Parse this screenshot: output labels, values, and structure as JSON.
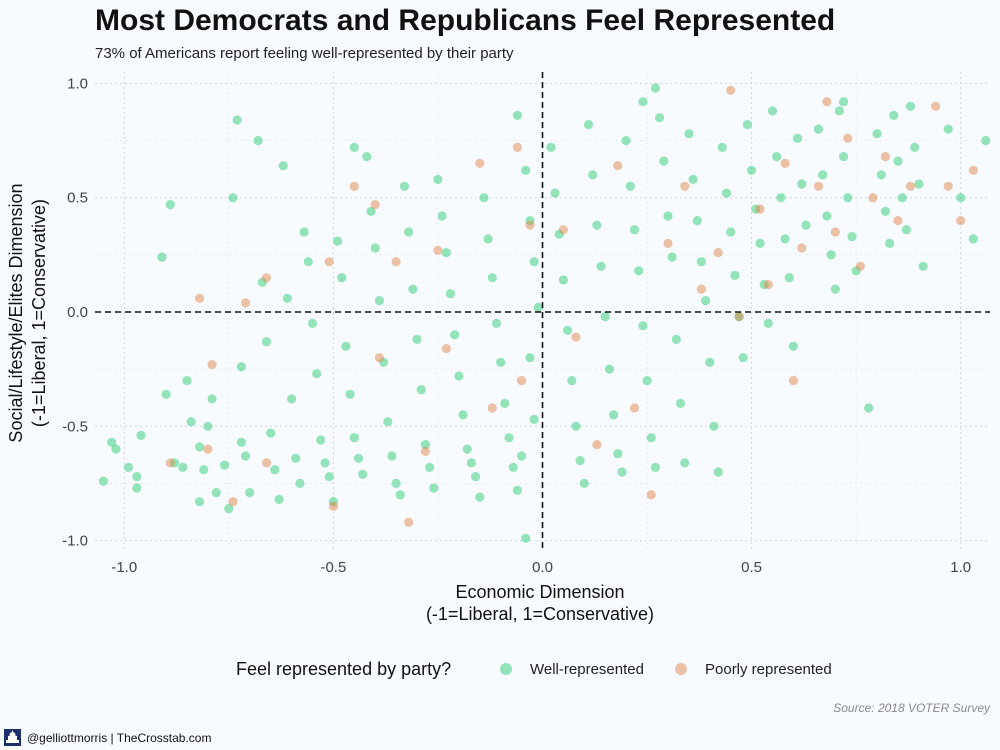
{
  "header": {
    "title": "Most Democrats and Republicans Feel Represented",
    "subtitle": "73% of Americans report feeling well-represented by their party"
  },
  "legend": {
    "title": "Feel represented by party?",
    "items": [
      {
        "label": "Well-represented",
        "color": "#2ecc71"
      },
      {
        "label": "Poorly represented",
        "color": "#e0864a"
      }
    ]
  },
  "caption": "Source: 2018 VOTER Survey",
  "footer": {
    "text": "@gelliottmorris | TheCrosstab.com",
    "icon": "capitol-building-icon"
  },
  "chart_data": {
    "type": "scatter",
    "xlabel": "Economic Dimension",
    "xlabel_line2": "(-1=Liberal, 1=Conservative)",
    "ylabel": "Social/Lifestyle/Elites Dimension",
    "ylabel_line2": "(-1=Liberal, 1=Conservative)",
    "xlim": [
      -1.07,
      1.07
    ],
    "ylim": [
      -1.05,
      1.05
    ],
    "x_ticks": [
      -1.0,
      -0.5,
      0.0,
      0.5,
      1.0
    ],
    "x_tick_labels": [
      "-1.0",
      "-0.5",
      "0.0",
      "0.5",
      "1.0"
    ],
    "y_ticks": [
      -1.0,
      -0.5,
      0.0,
      0.5,
      1.0
    ],
    "y_tick_labels": [
      "-1.0",
      "-0.5",
      "0.0",
      "0.5",
      "1.0"
    ],
    "grid": true,
    "reference_lines": {
      "x": 0,
      "y": 0,
      "style": "dashed"
    },
    "legend_position": "bottom",
    "point_alpha": 0.5,
    "series": [
      {
        "name": "Well-represented",
        "color": "#2ecc71",
        "points": [
          [
            -1.05,
            -0.74
          ],
          [
            -1.03,
            -0.57
          ],
          [
            -1.02,
            -0.6
          ],
          [
            -0.99,
            -0.68
          ],
          [
            -0.97,
            -0.72
          ],
          [
            -0.97,
            -0.77
          ],
          [
            -0.96,
            -0.54
          ],
          [
            -0.91,
            0.24
          ],
          [
            -0.89,
            0.47
          ],
          [
            -0.9,
            -0.36
          ],
          [
            -0.88,
            -0.66
          ],
          [
            -0.86,
            -0.68
          ],
          [
            -0.85,
            -0.3
          ],
          [
            -0.84,
            -0.48
          ],
          [
            -0.82,
            -0.59
          ],
          [
            -0.82,
            -0.83
          ],
          [
            -0.81,
            -0.69
          ],
          [
            -0.8,
            -0.5
          ],
          [
            -0.79,
            -0.38
          ],
          [
            -0.78,
            -0.79
          ],
          [
            -0.76,
            -0.67
          ],
          [
            -0.75,
            -0.86
          ],
          [
            -0.73,
            0.84
          ],
          [
            -0.74,
            0.5
          ],
          [
            -0.72,
            -0.24
          ],
          [
            -0.72,
            -0.57
          ],
          [
            -0.71,
            -0.63
          ],
          [
            -0.7,
            -0.79
          ],
          [
            -0.68,
            0.75
          ],
          [
            -0.67,
            0.13
          ],
          [
            -0.66,
            -0.13
          ],
          [
            -0.65,
            -0.53
          ],
          [
            -0.64,
            -0.69
          ],
          [
            -0.63,
            -0.82
          ],
          [
            -0.62,
            0.64
          ],
          [
            -0.61,
            0.06
          ],
          [
            -0.6,
            -0.38
          ],
          [
            -0.59,
            -0.64
          ],
          [
            -0.58,
            -0.75
          ],
          [
            -0.57,
            0.35
          ],
          [
            -0.56,
            0.22
          ],
          [
            -0.55,
            -0.05
          ],
          [
            -0.54,
            -0.27
          ],
          [
            -0.53,
            -0.56
          ],
          [
            -0.52,
            -0.66
          ],
          [
            -0.51,
            -0.72
          ],
          [
            -0.5,
            -0.83
          ],
          [
            -0.49,
            0.31
          ],
          [
            -0.48,
            0.15
          ],
          [
            -0.47,
            -0.15
          ],
          [
            -0.46,
            -0.36
          ],
          [
            -0.45,
            -0.55
          ],
          [
            -0.44,
            -0.64
          ],
          [
            -0.43,
            -0.71
          ],
          [
            -0.45,
            0.72
          ],
          [
            -0.42,
            0.68
          ],
          [
            -0.41,
            0.44
          ],
          [
            -0.4,
            0.28
          ],
          [
            -0.39,
            0.05
          ],
          [
            -0.38,
            -0.22
          ],
          [
            -0.37,
            -0.48
          ],
          [
            -0.36,
            -0.63
          ],
          [
            -0.35,
            -0.75
          ],
          [
            -0.34,
            -0.8
          ],
          [
            -0.33,
            0.55
          ],
          [
            -0.32,
            0.35
          ],
          [
            -0.31,
            0.1
          ],
          [
            -0.3,
            -0.12
          ],
          [
            -0.29,
            -0.34
          ],
          [
            -0.28,
            -0.58
          ],
          [
            -0.27,
            -0.68
          ],
          [
            -0.26,
            -0.77
          ],
          [
            -0.25,
            0.58
          ],
          [
            -0.24,
            0.42
          ],
          [
            -0.23,
            0.26
          ],
          [
            -0.22,
            0.08
          ],
          [
            -0.21,
            -0.1
          ],
          [
            -0.2,
            -0.28
          ],
          [
            -0.19,
            -0.45
          ],
          [
            -0.18,
            -0.6
          ],
          [
            -0.17,
            -0.66
          ],
          [
            -0.16,
            -0.72
          ],
          [
            -0.15,
            -0.81
          ],
          [
            -0.14,
            0.5
          ],
          [
            -0.13,
            0.32
          ],
          [
            -0.12,
            0.15
          ],
          [
            -0.11,
            -0.05
          ],
          [
            -0.1,
            -0.22
          ],
          [
            -0.09,
            -0.4
          ],
          [
            -0.08,
            -0.55
          ],
          [
            -0.07,
            -0.68
          ],
          [
            -0.06,
            -0.78
          ],
          [
            -0.06,
            0.86
          ],
          [
            -0.04,
            0.62
          ],
          [
            -0.03,
            0.4
          ],
          [
            -0.02,
            0.22
          ],
          [
            -0.01,
            0.02
          ],
          [
            -0.03,
            -0.2
          ],
          [
            -0.02,
            -0.47
          ],
          [
            -0.05,
            -0.63
          ],
          [
            -0.04,
            -0.99
          ],
          [
            0.02,
            0.72
          ],
          [
            0.03,
            0.52
          ],
          [
            0.04,
            0.34
          ],
          [
            0.05,
            0.14
          ],
          [
            0.06,
            -0.08
          ],
          [
            0.07,
            -0.3
          ],
          [
            0.08,
            -0.5
          ],
          [
            0.09,
            -0.65
          ],
          [
            0.1,
            -0.75
          ],
          [
            0.11,
            0.82
          ],
          [
            0.12,
            0.6
          ],
          [
            0.13,
            0.38
          ],
          [
            0.14,
            0.2
          ],
          [
            0.15,
            -0.02
          ],
          [
            0.16,
            -0.25
          ],
          [
            0.17,
            -0.45
          ],
          [
            0.18,
            -0.62
          ],
          [
            0.19,
            -0.7
          ],
          [
            0.2,
            0.75
          ],
          [
            0.21,
            0.55
          ],
          [
            0.22,
            0.36
          ],
          [
            0.23,
            0.18
          ],
          [
            0.24,
            -0.06
          ],
          [
            0.25,
            -0.3
          ],
          [
            0.26,
            -0.55
          ],
          [
            0.27,
            -0.68
          ],
          [
            0.28,
            0.85
          ],
          [
            0.29,
            0.66
          ],
          [
            0.3,
            0.42
          ],
          [
            0.31,
            0.24
          ],
          [
            0.32,
            -0.12
          ],
          [
            0.33,
            -0.4
          ],
          [
            0.34,
            -0.66
          ],
          [
            0.27,
            0.98
          ],
          [
            0.24,
            0.92
          ],
          [
            0.35,
            0.78
          ],
          [
            0.36,
            0.58
          ],
          [
            0.37,
            0.4
          ],
          [
            0.38,
            0.22
          ],
          [
            0.39,
            0.05
          ],
          [
            0.4,
            -0.22
          ],
          [
            0.41,
            -0.5
          ],
          [
            0.42,
            -0.7
          ],
          [
            0.43,
            0.72
          ],
          [
            0.44,
            0.52
          ],
          [
            0.45,
            0.35
          ],
          [
            0.46,
            0.16
          ],
          [
            0.47,
            -0.02
          ],
          [
            0.48,
            -0.2
          ],
          [
            0.49,
            0.82
          ],
          [
            0.5,
            0.62
          ],
          [
            0.51,
            0.45
          ],
          [
            0.52,
            0.3
          ],
          [
            0.53,
            0.12
          ],
          [
            0.54,
            -0.05
          ],
          [
            0.55,
            0.88
          ],
          [
            0.56,
            0.68
          ],
          [
            0.57,
            0.5
          ],
          [
            0.58,
            0.32
          ],
          [
            0.59,
            0.15
          ],
          [
            0.6,
            -0.15
          ],
          [
            0.61,
            0.76
          ],
          [
            0.62,
            0.56
          ],
          [
            0.63,
            0.38
          ],
          [
            0.66,
            0.8
          ],
          [
            0.67,
            0.6
          ],
          [
            0.68,
            0.42
          ],
          [
            0.69,
            0.25
          ],
          [
            0.7,
            0.1
          ],
          [
            0.71,
            0.88
          ],
          [
            0.72,
            0.68
          ],
          [
            0.73,
            0.5
          ],
          [
            0.74,
            0.33
          ],
          [
            0.75,
            0.18
          ],
          [
            0.72,
            0.92
          ],
          [
            0.78,
            -0.42
          ],
          [
            0.8,
            0.78
          ],
          [
            0.81,
            0.6
          ],
          [
            0.82,
            0.44
          ],
          [
            0.83,
            0.3
          ],
          [
            0.84,
            0.86
          ],
          [
            0.85,
            0.66
          ],
          [
            0.86,
            0.5
          ],
          [
            0.87,
            0.36
          ],
          [
            0.88,
            0.9
          ],
          [
            0.89,
            0.72
          ],
          [
            0.9,
            0.56
          ],
          [
            0.91,
            0.2
          ],
          [
            0.97,
            0.8
          ],
          [
            1.0,
            0.5
          ],
          [
            1.03,
            0.32
          ],
          [
            1.06,
            0.75
          ]
        ]
      },
      {
        "name": "Poorly represented",
        "color": "#e0864a",
        "points": [
          [
            -0.89,
            -0.66
          ],
          [
            -0.82,
            0.06
          ],
          [
            -0.8,
            -0.6
          ],
          [
            -0.79,
            -0.23
          ],
          [
            -0.74,
            -0.83
          ],
          [
            -0.71,
            0.04
          ],
          [
            -0.66,
            0.15
          ],
          [
            -0.66,
            -0.66
          ],
          [
            -0.51,
            0.22
          ],
          [
            -0.5,
            -0.85
          ],
          [
            -0.45,
            0.55
          ],
          [
            -0.4,
            0.47
          ],
          [
            -0.39,
            -0.2
          ],
          [
            -0.35,
            0.22
          ],
          [
            -0.32,
            -0.92
          ],
          [
            -0.28,
            -0.61
          ],
          [
            -0.25,
            0.27
          ],
          [
            -0.23,
            -0.16
          ],
          [
            -0.15,
            0.65
          ],
          [
            -0.12,
            -0.42
          ],
          [
            -0.06,
            0.72
          ],
          [
            -0.05,
            -0.3
          ],
          [
            -0.03,
            0.38
          ],
          [
            0.05,
            0.36
          ],
          [
            0.08,
            -0.11
          ],
          [
            0.13,
            -0.58
          ],
          [
            0.18,
            0.64
          ],
          [
            0.22,
            -0.42
          ],
          [
            0.26,
            -0.8
          ],
          [
            0.3,
            0.3
          ],
          [
            0.34,
            0.55
          ],
          [
            0.38,
            0.1
          ],
          [
            0.42,
            0.26
          ],
          [
            0.45,
            0.97
          ],
          [
            0.47,
            -0.02
          ],
          [
            0.52,
            0.45
          ],
          [
            0.54,
            0.12
          ],
          [
            0.58,
            0.65
          ],
          [
            0.6,
            -0.3
          ],
          [
            0.62,
            0.28
          ],
          [
            0.66,
            0.55
          ],
          [
            0.68,
            0.92
          ],
          [
            0.7,
            0.35
          ],
          [
            0.73,
            0.76
          ],
          [
            0.76,
            0.2
          ],
          [
            0.79,
            0.5
          ],
          [
            0.82,
            0.68
          ],
          [
            0.85,
            0.4
          ],
          [
            0.88,
            0.55
          ],
          [
            0.94,
            0.9
          ],
          [
            0.97,
            0.55
          ],
          [
            1.0,
            0.4
          ],
          [
            1.03,
            0.62
          ]
        ]
      }
    ]
  }
}
